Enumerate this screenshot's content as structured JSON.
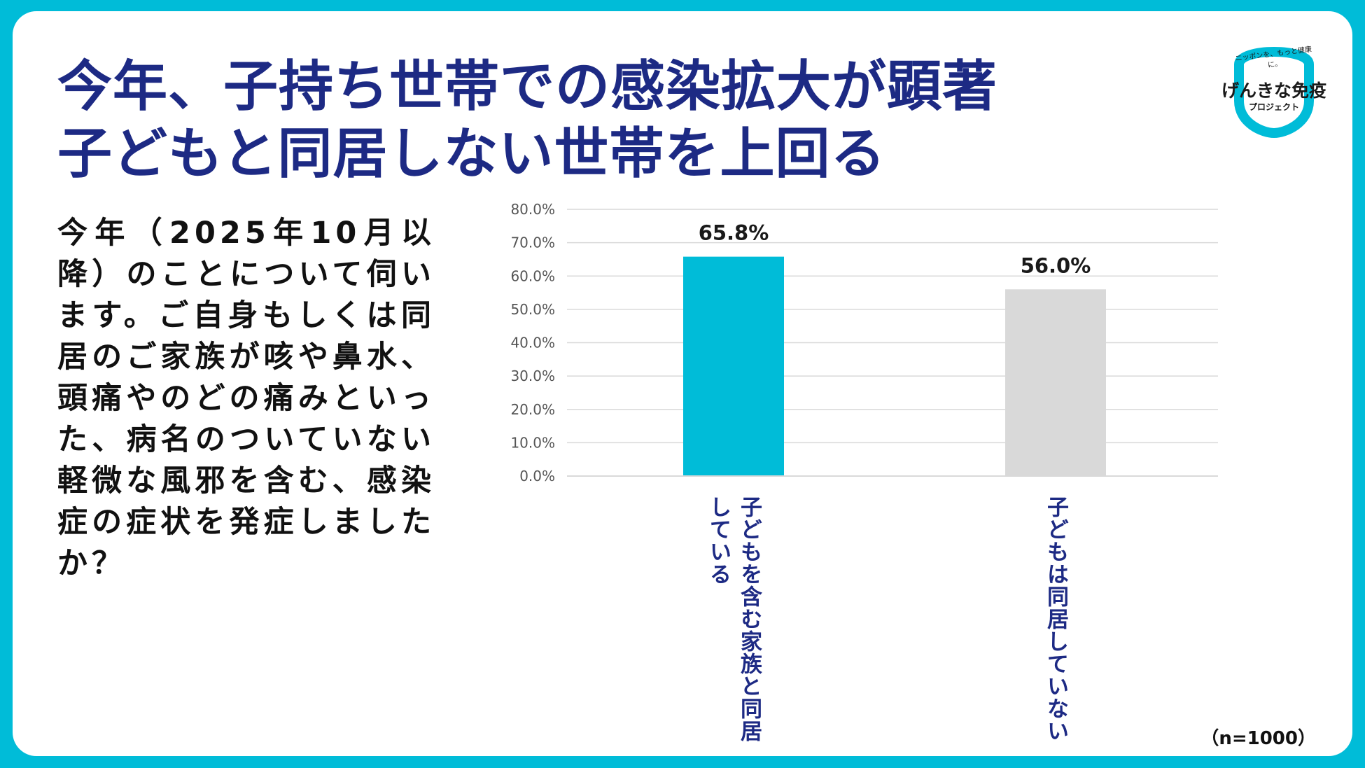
{
  "title": {
    "line1": "今年、子持ち世帯での感染拡大が顕著",
    "line2": "子どもと同居しない世帯を上回る"
  },
  "question": "今年（2025年10月以降）のことについて伺います。ご自身もしくは同居のご家族が咳や鼻水、頭痛やのどの痛みといった、病名のついていない軽微な風邪を含む、感染症の症状を発症しましたか？",
  "logo": {
    "tagline": "ニッポンを、もっと健康に。",
    "name": "げんきな免疫",
    "sub": "プロジェクト",
    "ring_color": "#00bcd8"
  },
  "sample_note": "（n=1000）",
  "colors": {
    "frame": "#00bcd8",
    "title": "#1d2a84",
    "bar_children": "#00bcd8",
    "bar_no_children": "#d9d9d9",
    "category_text": "#1d2a84"
  },
  "chart_data": {
    "type": "bar",
    "categories": [
      "子どもを含む家族と同居している",
      "子どもは同居していない"
    ],
    "category_lines": [
      [
        "子どもを含む家族と同居",
        "している"
      ],
      [
        "子どもは同居していない"
      ]
    ],
    "values": [
      65.8,
      56.0
    ],
    "value_labels": [
      "65.8%",
      "56.0%"
    ],
    "bar_colors": [
      "#00bcd8",
      "#d9d9d9"
    ],
    "yticks": [
      "0.0%",
      "10.0%",
      "20.0%",
      "30.0%",
      "40.0%",
      "50.0%",
      "60.0%",
      "70.0%",
      "80.0%"
    ],
    "ylim": [
      0,
      80
    ],
    "grid": true,
    "title": "",
    "xlabel": "",
    "ylabel": ""
  }
}
